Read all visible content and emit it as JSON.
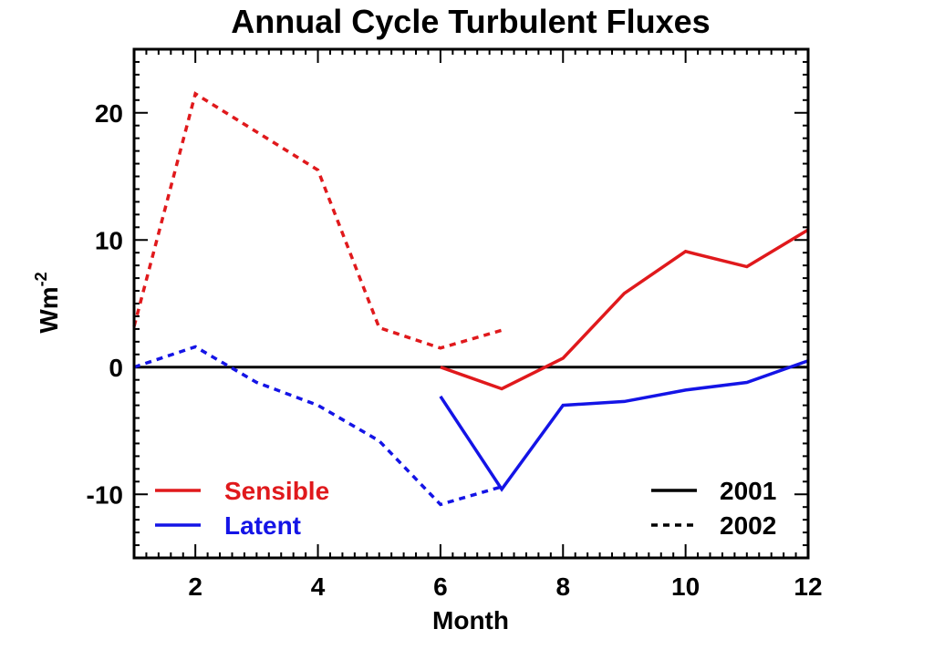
{
  "chart_data": {
    "type": "line",
    "title": "Annual Cycle Turbulent Fluxes",
    "xlabel": "Month",
    "ylabel_base": "Wm",
    "ylabel_sup": "-2",
    "xlim": [
      1,
      12
    ],
    "ylim": [
      -15,
      25
    ],
    "x_ticks": [
      2,
      4,
      6,
      8,
      10,
      12
    ],
    "y_ticks": [
      -10,
      0,
      10,
      20
    ],
    "zero_line": true,
    "grid": false,
    "colors": {
      "sensible": "#e0191c",
      "latent": "#1414e6",
      "axis": "#000000"
    },
    "series": [
      {
        "id": "sensible-2001",
        "variable": "sensible",
        "year": "2001",
        "style": "solid",
        "x": [
          6,
          7,
          8,
          9,
          10,
          11,
          12
        ],
        "y": [
          0.0,
          -1.7,
          0.7,
          5.8,
          9.1,
          7.9,
          10.8
        ]
      },
      {
        "id": "latent-2001",
        "variable": "latent",
        "year": "2001",
        "style": "solid",
        "x": [
          6,
          7,
          8,
          9,
          10,
          11,
          12
        ],
        "y": [
          -2.3,
          -9.6,
          -3.0,
          -2.7,
          -1.8,
          -1.2,
          0.5
        ]
      },
      {
        "id": "sensible-2002",
        "variable": "sensible",
        "year": "2002",
        "style": "dashed",
        "x": [
          1,
          2,
          3,
          4,
          5,
          6,
          7
        ],
        "y": [
          3.2,
          21.5,
          18.5,
          15.5,
          3.1,
          1.5,
          2.9
        ]
      },
      {
        "id": "latent-2002",
        "variable": "latent",
        "year": "2002",
        "style": "dashed",
        "x": [
          1,
          2,
          3,
          4,
          5,
          6,
          7
        ],
        "y": [
          0.0,
          1.6,
          -1.2,
          -3.0,
          -5.8,
          -10.8,
          -9.4
        ]
      }
    ],
    "legend": {
      "variables": [
        {
          "label": "Sensible",
          "variable": "sensible"
        },
        {
          "label": "Latent",
          "variable": "latent"
        }
      ],
      "styles": [
        {
          "label": "2001",
          "style": "solid"
        },
        {
          "label": "2002",
          "style": "dashed"
        }
      ],
      "placement_variables": "bottom-left",
      "placement_styles": "bottom-right"
    }
  }
}
